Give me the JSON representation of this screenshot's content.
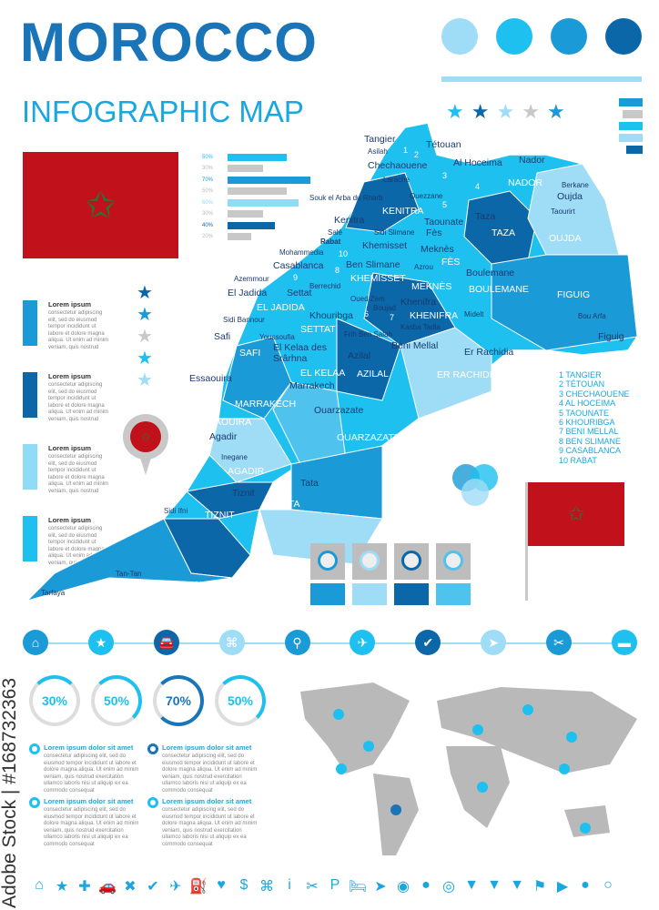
{
  "header": {
    "title": "MOROCCO",
    "subtitle": "INFOGRAPHIC MAP"
  },
  "colors": {
    "dark": "#0b67a8",
    "mid": "#1a9ad6",
    "light": "#4fc2ee",
    "pale": "#9fdcf6",
    "gray": "#c8c8c8",
    "flag_red": "#c1121c",
    "flag_star": "#1f7a3a"
  },
  "bar_chart": {
    "rows": [
      {
        "label": "50%",
        "value": 50,
        "color": "#1ec0f0"
      },
      {
        "label": "30%",
        "value": 30,
        "color": "#c8c8c8"
      },
      {
        "label": "70%",
        "value": 70,
        "color": "#1a9ad6"
      },
      {
        "label": "50%",
        "value": 50,
        "color": "#c8c8c8"
      },
      {
        "label": "60%",
        "value": 60,
        "color": "#8fdcf6"
      },
      {
        "label": "30%",
        "value": 30,
        "color": "#c8c8c8"
      },
      {
        "label": "40%",
        "value": 40,
        "color": "#0b67a8"
      },
      {
        "label": "20%",
        "value": 20,
        "color": "#c8c8c8"
      }
    ]
  },
  "cards": [
    {
      "title": "Lorem ipsum",
      "text": "consectetur adipiscing elit, sed do eiusmod tempor incididunt ut labore et dolore magna aliqua. Ut enim ad minim veniam, quis nostrud",
      "color": "#1a9ad6"
    },
    {
      "title": "Lorem ipsum",
      "text": "consectetur adipiscing elit, sed do eiusmod tempor incididunt ut labore et dolore magna aliqua. Ut enim ad minim veniam, quis nostrud",
      "color": "#0b67a8"
    },
    {
      "title": "Lorem ipsum",
      "text": "consectetur adipiscing elit, sed do eiusmod tempor incididunt ut labore et dolore magna aliqua. Ut enim ad minim veniam, quis nostrud",
      "color": "#8fdcf6"
    },
    {
      "title": "Lorem ipsum",
      "text": "consectetur adipiscing elit, sed do eiusmod tempor incididunt ut labore et dolore magna aliqua. Ut enim ad minim veniam, quis nostrud",
      "color": "#1ec0f0"
    }
  ],
  "star_rating_top": {
    "filled": 2,
    "total": 5
  },
  "map": {
    "regions": [
      "KENITRA",
      "NADOR",
      "TAZA",
      "OUJDA",
      "KHEMISSET",
      "MEKNÈS",
      "FÈS",
      "BOULEMANE",
      "FIGUIG",
      "EL JADIDA",
      "SETTAT",
      "KHENIFRA",
      "SAFI",
      "EL KELAA",
      "AZILAL",
      "ER RACHIDIA",
      "MARRAKECH",
      "ESSAOUIRA",
      "OUARZAZATE",
      "AGADIR",
      "TATA",
      "TIZNIT",
      "TAN-TAN"
    ],
    "cities": [
      "Tangier",
      "Asilah",
      "Tétouan",
      "Chechaouene",
      "Larache",
      "Al Hoceima",
      "Nador",
      "Berkane",
      "Oujda",
      "Taourirt",
      "Ouezzane",
      "Souk el Arba du Rharb",
      "Kenitra",
      "Sidi Slimane",
      "Taounate",
      "Taza",
      "Salé",
      "Rabat",
      "Khemisset",
      "Fès",
      "Meknès",
      "Mohammedia",
      "Casablanca",
      "Ben Slimane",
      "Azrou",
      "Boulemane",
      "Azemmour",
      "Berrechid",
      "El Jadida",
      "Settat",
      "Oued Zem",
      "Khouribga",
      "Boujad",
      "Khenifra",
      "Midelt",
      "Sidi Bannour",
      "Kasba Tadla",
      "Frih Ben Salah",
      "Beni Mellal",
      "Safi",
      "Youssoufia",
      "El Kelaa des Srârhna",
      "Azilal",
      "Er Rachidia",
      "Bou Arfa",
      "Figuig",
      "Marrakech",
      "Essaouira",
      "Ouarzazate",
      "Agadir",
      "Inegane",
      "Tata",
      "Tiznit",
      "Sidi Ifni",
      "Tan-Tan",
      "Tarfaya"
    ],
    "numbers": [
      "1",
      "2",
      "3",
      "4",
      "5",
      "6",
      "7",
      "8",
      "9",
      "10"
    ],
    "legend": [
      "1 TANGIER",
      "2 TÉTOUAN",
      "3 CHECHAOUENE",
      "4 AL HOCEIMA",
      "5 TAOUNATE",
      "6 KHOURIBGA",
      "7 BENI MELLAL",
      "8 BEN SLIMANE",
      "9 CASABLANCA",
      "10 RABAT"
    ]
  },
  "icon_row": [
    "home-icon",
    "star-icon",
    "car-icon",
    "command-icon",
    "pin-icon",
    "plane-icon",
    "check-icon",
    "send-icon",
    "fork-knife-icon",
    "bed-icon"
  ],
  "donuts": [
    {
      "label": "30%",
      "value": 30
    },
    {
      "label": "50%",
      "value": 50
    },
    {
      "label": "70%",
      "value": 70
    },
    {
      "label": "50%",
      "value": 50
    }
  ],
  "list_items": [
    {
      "title": "Lorem ipsum dolor sit amet",
      "text": "consectetur adipiscing elit, sed do eiusmod tempor incididunt ut labore et dolore magna aliqua. Ut enim ad minim veniam, quis nostrud exercitation ullamco laboris nisi ut aliquip ex ea commodo consequat"
    },
    {
      "title": "Lorem ipsum dolor sit amet",
      "text": "consectetur adipiscing elit, sed do eiusmod tempor incididunt ut labore et dolore magna aliqua. Ut enim ad minim veniam, quis nostrud exercitation ullamco laboris nisi ut aliquip ex ea commodo consequat"
    },
    {
      "title": "Lorem ipsum dolor sit amet",
      "text": "consectetur adipiscing elit, sed do eiusmod tempor incididunt ut labore et dolore magna aliqua. Ut enim ad minim veniam, quis nostrud exercitation ullamco laboris nisi ut aliquip ex ea commodo consequat"
    },
    {
      "title": "Lorem ipsum dolor sit amet",
      "text": "consectetur adipiscing elit, sed do eiusmod tempor incididunt ut labore et dolore magna aliqua. Ut enim ad minim veniam, quis nostrud exercitation ullamco laboris nisi ut aliquip ex ea commodo consequat"
    }
  ],
  "bottom_icons": [
    "⌂",
    "★",
    "✚",
    "🚗",
    "✖",
    "✔",
    "✈",
    "⛽",
    "♥",
    "$",
    "⌘",
    "i",
    "✂",
    "P",
    "🛏",
    "➤",
    "◉",
    "●",
    "◎",
    "▼",
    "▼",
    "▼",
    "⚑",
    "▶",
    "●",
    "○"
  ],
  "watermark": "Adobe Stock | #168732363"
}
